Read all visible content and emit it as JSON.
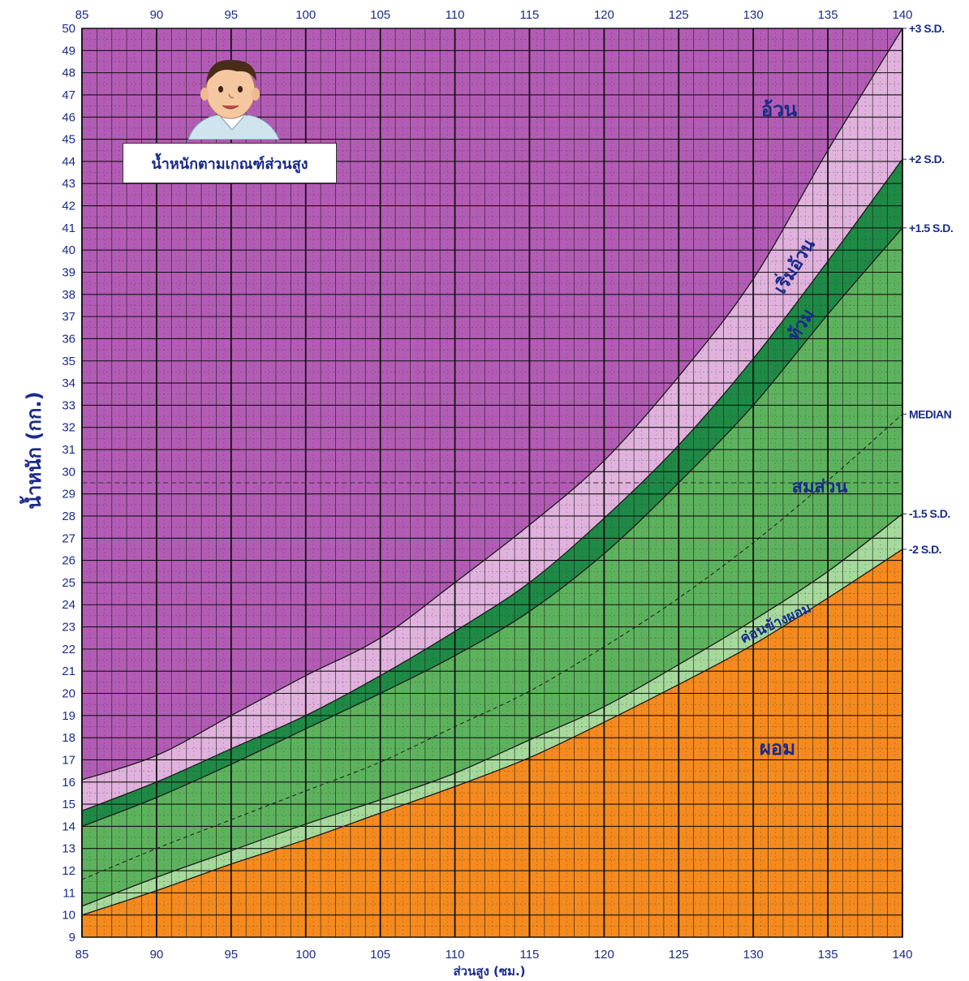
{
  "title": "น้ำหนักตามเกณฑ์ส่วนสูง",
  "illustration": "child-portrait-icon",
  "chart_data": {
    "type": "area",
    "xlabel": "ส่วนสูง (ซม.)",
    "ylabel": "น้ำหนัก (กก.)",
    "xlim": [
      85,
      140
    ],
    "ylim": [
      9,
      50
    ],
    "x_ticks": [
      85,
      90,
      95,
      100,
      105,
      110,
      115,
      120,
      125,
      130,
      135,
      140
    ],
    "y_ticks": [
      9,
      10,
      11,
      12,
      13,
      14,
      15,
      16,
      17,
      18,
      19,
      20,
      21,
      22,
      23,
      24,
      25,
      26,
      27,
      28,
      29,
      30,
      31,
      32,
      33,
      34,
      35,
      36,
      37,
      38,
      39,
      40,
      41,
      42,
      43,
      44,
      45,
      46,
      47,
      48,
      49,
      50
    ],
    "grid": true,
    "x": [
      85,
      90,
      95,
      100,
      105,
      110,
      115,
      120,
      125,
      130,
      135,
      140
    ],
    "series": [
      {
        "name": "-2 S.D.",
        "values": [
          10.0,
          11.1,
          12.3,
          13.4,
          14.6,
          15.8,
          17.1,
          18.7,
          20.4,
          22.2,
          24.3,
          26.5
        ]
      },
      {
        "name": "-1.5 S.D.",
        "values": [
          10.4,
          11.7,
          12.9,
          14.1,
          15.2,
          16.4,
          17.9,
          19.4,
          21.3,
          23.3,
          25.5,
          28.1
        ]
      },
      {
        "name": "MEDIAN",
        "values": [
          11.6,
          13.0,
          14.3,
          15.6,
          16.9,
          18.5,
          20.1,
          22.1,
          24.3,
          26.8,
          29.6,
          32.6
        ]
      },
      {
        "name": "+1.5 S.D.",
        "values": [
          14.0,
          15.3,
          16.8,
          18.4,
          20.0,
          21.7,
          23.7,
          26.3,
          29.5,
          33.0,
          37.1,
          41.0
        ]
      },
      {
        "name": "+2 S.D.",
        "values": [
          14.7,
          16.0,
          17.5,
          19.0,
          20.8,
          22.8,
          25.0,
          27.9,
          31.2,
          35.1,
          39.5,
          44.1
        ]
      },
      {
        "name": "+3 S.D.",
        "values": [
          16.1,
          17.2,
          19.0,
          20.8,
          22.5,
          25.0,
          27.6,
          30.5,
          34.3,
          38.7,
          44.5,
          50.0
        ]
      }
    ],
    "reference_line_y": 29.5,
    "zones": [
      {
        "label": "อ้วน",
        "color": "#b35cb5"
      },
      {
        "label": "เริ่มอ้วน",
        "color": "#e0b2dd"
      },
      {
        "label": "ท้วม",
        "color": "#1e8a46"
      },
      {
        "label": "สมส่วน",
        "color": "#5db35d"
      },
      {
        "label": "ค่อนข้างผอม",
        "color": "#a6d99c"
      },
      {
        "label": "ผอม",
        "color": "#f58a1e"
      }
    ]
  }
}
